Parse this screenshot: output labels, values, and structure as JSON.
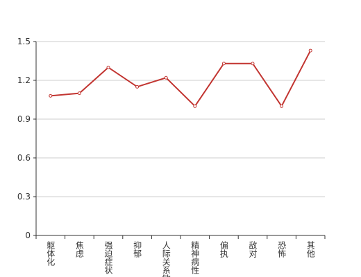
{
  "chart_data": {
    "type": "line",
    "categories": [
      "躯体化",
      "焦虑",
      "强迫症状",
      "抑郁",
      "人际关系敏感",
      "精神病性",
      "偏执",
      "敌对",
      "恐怖",
      "其他"
    ],
    "series": [
      {
        "color": "#c23531",
        "values": [
          1.08,
          1.1,
          1.3,
          1.15,
          1.22,
          1.0,
          1.33,
          1.33,
          1.0,
          1.43
        ]
      }
    ],
    "ylim": [
      0,
      1.5
    ],
    "yticks": [
      0,
      0.3,
      0.6,
      0.9,
      1.2,
      1.5
    ],
    "grid": true
  }
}
